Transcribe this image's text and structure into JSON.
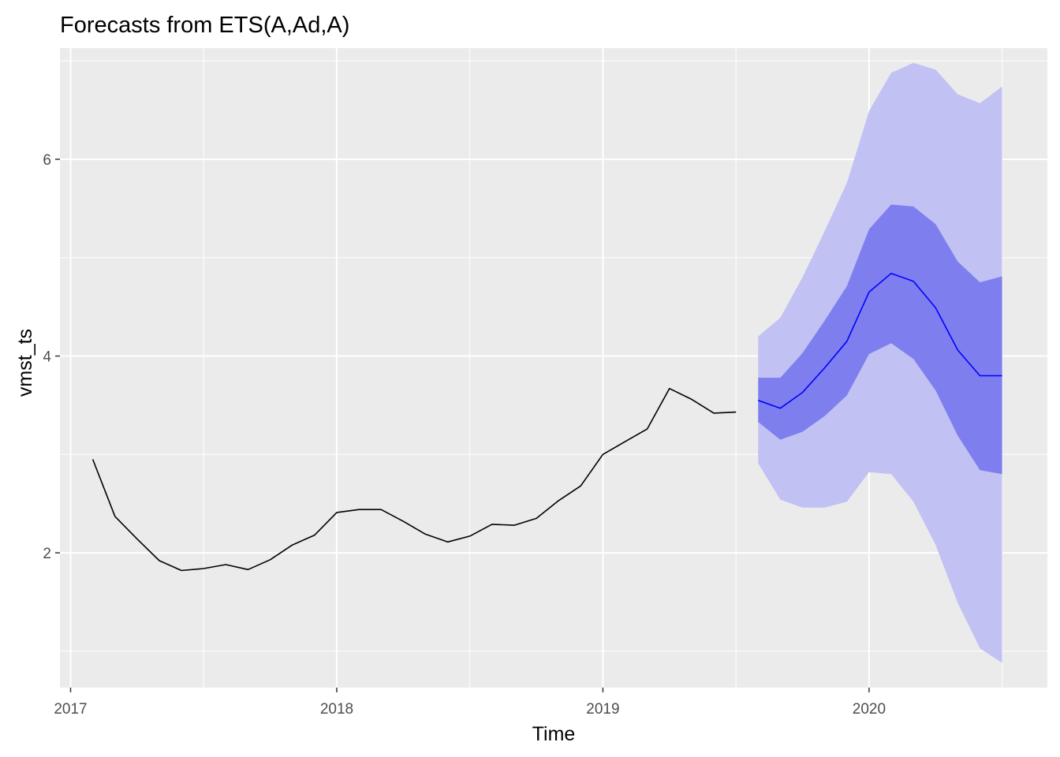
{
  "chart_data": {
    "type": "line",
    "title": "Forecasts from ETS(A,Ad,A)",
    "xlabel": "Time",
    "ylabel": "vmst_ts",
    "xlim": [
      2016.96,
      2020.67
    ],
    "ylim": [
      0.63,
      7.13
    ],
    "x_ticks": [
      2017,
      2018,
      2019,
      2020
    ],
    "x_tick_labels": [
      "2017",
      "2018",
      "2019",
      "2020"
    ],
    "y_ticks": [
      2,
      4,
      6
    ],
    "y_tick_labels": [
      "2",
      "4",
      "6"
    ],
    "grid": true,
    "legend": "none",
    "colors": {
      "panel_background": "#ebebeb",
      "grid": "#ffffff",
      "history_line": "#000000",
      "forecast_line": "#0000ff",
      "band_95": "#c1c1f4",
      "band_80": "#7e7eee"
    },
    "series": [
      {
        "x": [
          2017.0833,
          2017.1667,
          2017.25,
          2017.3333,
          2017.4167,
          2017.5,
          2017.5833,
          2017.6667,
          2017.75,
          2017.8333,
          2017.9167,
          2018.0,
          2018.0833,
          2018.1667,
          2018.25,
          2018.3333,
          2018.4167,
          2018.5,
          2018.5833,
          2018.6667,
          2018.75,
          2018.8333,
          2018.9167,
          2019.0,
          2019.0833,
          2019.1667,
          2019.25,
          2019.3333,
          2019.4167,
          2019.5
        ],
        "values": [
          2.95,
          2.37,
          2.14,
          1.92,
          1.82,
          1.84,
          1.88,
          1.83,
          1.93,
          2.08,
          2.18,
          2.41,
          2.44,
          2.44,
          2.32,
          2.19,
          2.11,
          2.17,
          2.29,
          2.28,
          2.35,
          2.53,
          2.68,
          3.0,
          3.13,
          3.26,
          3.67,
          3.56,
          3.42,
          3.43
        ]
      },
      {
        "x": [
          2019.5833,
          2019.6667,
          2019.75,
          2019.8333,
          2019.9167,
          2020.0,
          2020.0833,
          2020.1667,
          2020.25,
          2020.3333,
          2020.4167,
          2020.5
        ],
        "values": [
          3.55,
          3.47,
          3.63,
          3.88,
          4.15,
          4.65,
          4.84,
          4.76,
          4.49,
          4.06,
          3.8,
          3.8
        ],
        "lower_80": [
          3.33,
          3.15,
          3.23,
          3.39,
          3.6,
          4.02,
          4.13,
          3.97,
          3.65,
          3.19,
          2.84,
          2.8
        ],
        "upper_80": [
          3.78,
          3.78,
          4.03,
          4.36,
          4.71,
          5.29,
          5.54,
          5.52,
          5.34,
          4.96,
          4.75,
          4.81
        ],
        "lower_95": [
          2.91,
          2.54,
          2.46,
          2.46,
          2.52,
          2.82,
          2.8,
          2.52,
          2.08,
          1.49,
          1.03,
          0.88
        ],
        "upper_95": [
          4.2,
          4.39,
          4.8,
          5.27,
          5.76,
          6.49,
          6.88,
          6.98,
          6.91,
          6.66,
          6.57,
          6.74
        ]
      }
    ]
  }
}
